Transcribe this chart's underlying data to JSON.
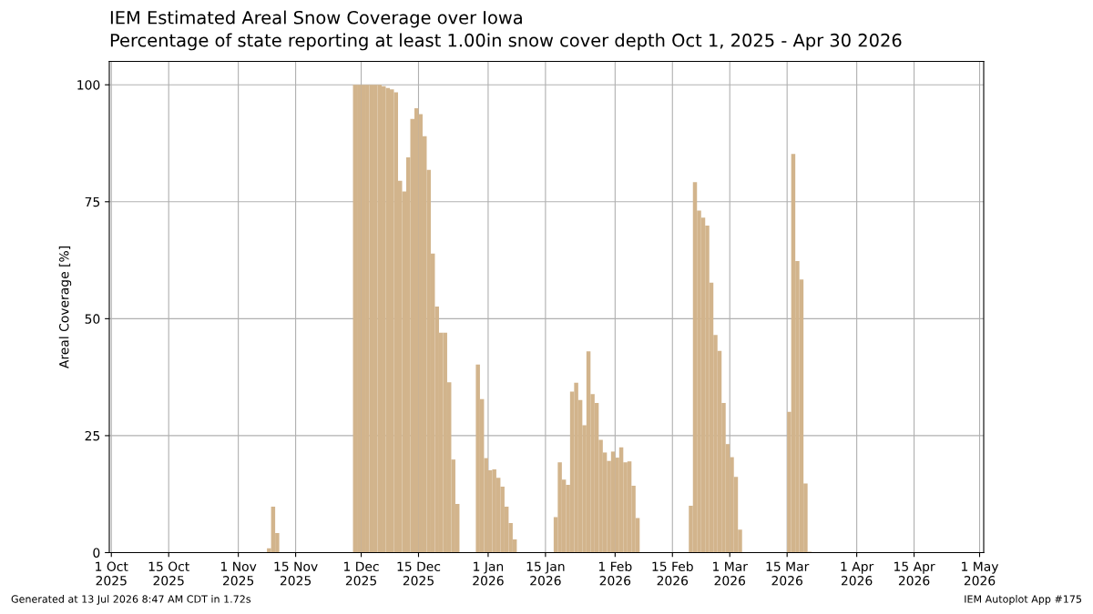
{
  "chart_data": {
    "type": "bar",
    "title": "IEM Estimated Areal Snow Coverage over Iowa",
    "subtitle": "Percentage of state reporting at least 1.00in snow cover depth Oct 1, 2025 - Apr 30 2026",
    "ylabel": "Areal Coverage [%]",
    "x": [
      "2025-11-08",
      "2025-11-09",
      "2025-11-10",
      "2025-11-29",
      "2025-11-30",
      "2025-12-01",
      "2025-12-02",
      "2025-12-03",
      "2025-12-04",
      "2025-12-05",
      "2025-12-06",
      "2025-12-07",
      "2025-12-08",
      "2025-12-09",
      "2025-12-10",
      "2025-12-11",
      "2025-12-12",
      "2025-12-13",
      "2025-12-14",
      "2025-12-15",
      "2025-12-16",
      "2025-12-17",
      "2025-12-18",
      "2025-12-19",
      "2025-12-20",
      "2025-12-21",
      "2025-12-22",
      "2025-12-23",
      "2025-12-24",
      "2025-12-29",
      "2025-12-30",
      "2025-12-31",
      "2026-01-01",
      "2026-01-02",
      "2026-01-03",
      "2026-01-04",
      "2026-01-05",
      "2026-01-06",
      "2026-01-07",
      "2026-01-17",
      "2026-01-18",
      "2026-01-19",
      "2026-01-20",
      "2026-01-21",
      "2026-01-22",
      "2026-01-23",
      "2026-01-24",
      "2026-01-25",
      "2026-01-26",
      "2026-01-27",
      "2026-01-28",
      "2026-01-29",
      "2026-01-30",
      "2026-01-31",
      "2026-02-01",
      "2026-02-02",
      "2026-02-03",
      "2026-02-04",
      "2026-02-05",
      "2026-02-06",
      "2026-02-19",
      "2026-02-20",
      "2026-02-21",
      "2026-02-22",
      "2026-02-23",
      "2026-02-24",
      "2026-02-25",
      "2026-02-26",
      "2026-02-27",
      "2026-02-28",
      "2026-03-01",
      "2026-03-02",
      "2026-03-03",
      "2026-03-15",
      "2026-03-16",
      "2026-03-17",
      "2026-03-18",
      "2026-03-19",
      "2026-03-20"
    ],
    "values": [
      0.9,
      9.8,
      4.2,
      100,
      100,
      100,
      100,
      100,
      100,
      100,
      99.7,
      99.3,
      99.0,
      98.4,
      79.5,
      77.2,
      84.5,
      92.7,
      95.0,
      93.7,
      89.0,
      81.8,
      63.9,
      52.6,
      47.0,
      47.0,
      36.4,
      19.9,
      10.4,
      40.2,
      32.8,
      20.2,
      17.6,
      17.8,
      16.0,
      14.1,
      9.8,
      6.3,
      2.8,
      7.6,
      19.3,
      15.6,
      14.5,
      34.4,
      36.3,
      32.6,
      27.2,
      43.0,
      33.9,
      32.0,
      24.1,
      21.4,
      19.6,
      21.6,
      20.3,
      22.5,
      19.3,
      19.5,
      14.3,
      7.4,
      10.0,
      79.2,
      73.1,
      71.6,
      69.9,
      57.7,
      46.5,
      43.1,
      32.0,
      23.2,
      20.4,
      16.2,
      4.9,
      30.1,
      85.2,
      62.3,
      58.4,
      14.8,
      0.2
    ],
    "color": "#d2b48c",
    "xlim": [
      "2025-09-30T12:00",
      "2026-05-02"
    ],
    "xticks": [
      {
        "value": "2025-10-01",
        "label": "1 Oct\n2025"
      },
      {
        "value": "2025-10-15",
        "label": "15 Oct\n2025"
      },
      {
        "value": "2025-11-01",
        "label": "1 Nov\n2025"
      },
      {
        "value": "2025-11-15",
        "label": "15 Nov\n2025"
      },
      {
        "value": "2025-12-01",
        "label": "1 Dec\n2025"
      },
      {
        "value": "2025-12-15",
        "label": "15 Dec\n2025"
      },
      {
        "value": "2026-01-01",
        "label": "1 Jan\n2026"
      },
      {
        "value": "2026-01-15",
        "label": "15 Jan\n2026"
      },
      {
        "value": "2026-02-01",
        "label": "1 Feb\n2026"
      },
      {
        "value": "2026-02-15",
        "label": "15 Feb\n2026"
      },
      {
        "value": "2026-03-01",
        "label": "1 Mar\n2026"
      },
      {
        "value": "2026-03-15",
        "label": "15 Mar\n2026"
      },
      {
        "value": "2026-04-01",
        "label": "1 Apr\n2026"
      },
      {
        "value": "2026-04-15",
        "label": "15 Apr\n2026"
      },
      {
        "value": "2026-05-01",
        "label": "1 May\n2026"
      }
    ],
    "ylim": [
      0,
      105
    ],
    "yticks": [
      0,
      25,
      50,
      75,
      100
    ],
    "grid": true,
    "annotations": [
      "Generated at 13 Jul 2026 8:47 AM CDT in 1.72s",
      "IEM Autoplot App #175"
    ]
  }
}
